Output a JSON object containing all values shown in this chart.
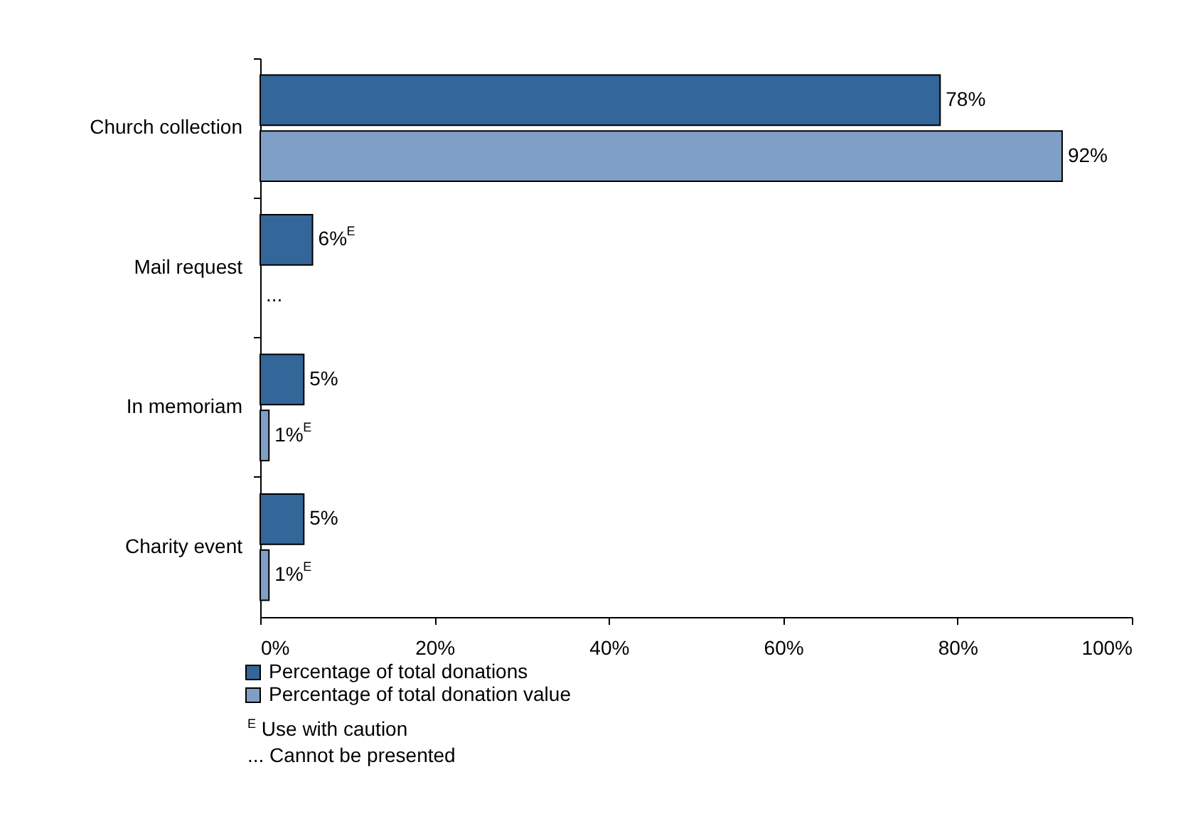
{
  "chart_data": {
    "type": "bar",
    "orientation": "horizontal",
    "categories": [
      "Church collection",
      "Mail request",
      "In memoriam",
      "Charity event"
    ],
    "series": [
      {
        "name": "Percentage of total donations",
        "color": "#336699",
        "values": [
          78,
          6,
          5,
          5
        ],
        "value_labels": [
          "78%",
          "6%$^{E}$",
          "5%",
          "5%"
        ]
      },
      {
        "name": "Percentage of total donation value",
        "color": "#809fc6",
        "values": [
          92,
          null,
          1,
          1
        ],
        "value_labels": [
          "92%",
          "...",
          "1%$^{E}$",
          "1%$^{E}$"
        ]
      }
    ],
    "xlim": [
      0,
      100
    ],
    "xticks": [
      {
        "value": 0,
        "label": "0%"
      },
      {
        "value": 20,
        "label": "20%"
      },
      {
        "value": 40,
        "label": "40%"
      },
      {
        "value": 60,
        "label": "60%"
      },
      {
        "value": 80,
        "label": "80%"
      },
      {
        "value": 100,
        "label": "100%"
      }
    ],
    "grid": false,
    "legend": "bottom",
    "annotations": [
      "$^{E}$ Use with caution",
      "... Cannot be presented"
    ]
  }
}
